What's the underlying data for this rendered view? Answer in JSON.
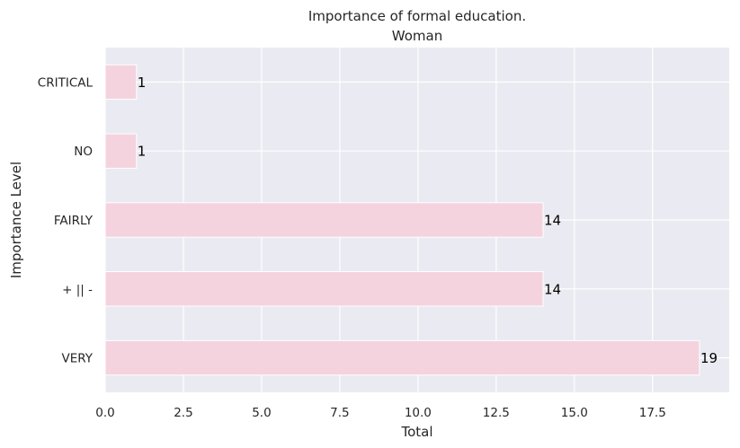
{
  "chart_data": {
    "type": "bar",
    "orientation": "horizontal",
    "title": "Importance of formal education.",
    "subtitle": "Woman",
    "xlabel": "Total",
    "ylabel": "Importance Level",
    "categories": [
      "CRITICAL",
      "NO",
      "FAIRLY",
      "+ || -",
      "VERY"
    ],
    "values": [
      1,
      1,
      14,
      14,
      19
    ],
    "data_labels": [
      "1",
      "1",
      "14",
      "14",
      "19"
    ],
    "xlim": [
      0,
      19.95
    ],
    "xticks": [
      0,
      2.5,
      5,
      7.5,
      10,
      12.5,
      15,
      17.5
    ],
    "xtick_labels": [
      "0.0",
      "2.5",
      "5.0",
      "7.5",
      "10.0",
      "12.5",
      "15.0",
      "17.5"
    ],
    "grid": true,
    "bar_color": "#f4d3df",
    "plot_background": "#eaeaf2",
    "grid_color": "#ffffff"
  }
}
